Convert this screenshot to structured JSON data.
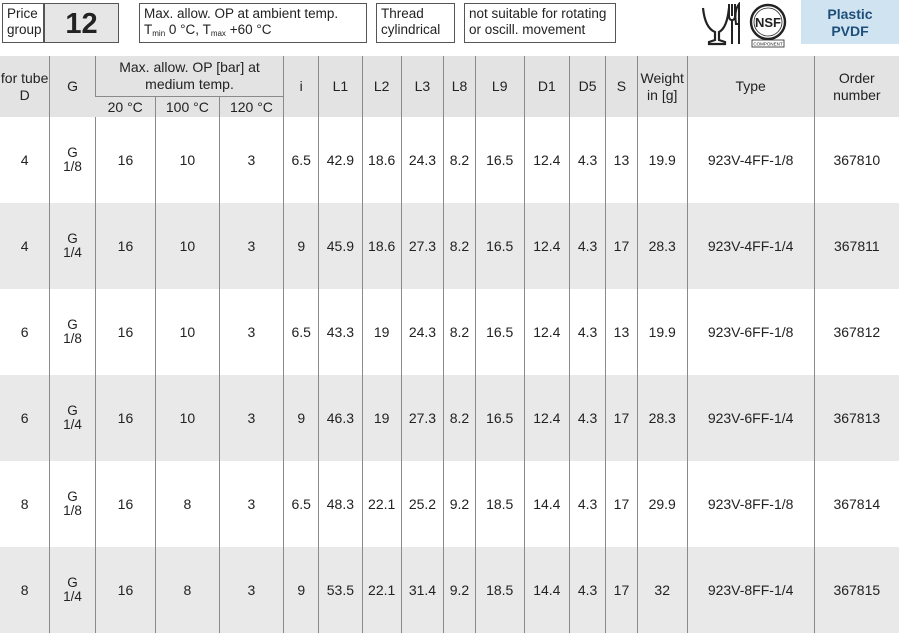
{
  "header": {
    "price_group_label_1": "Price",
    "price_group_label_2": "group",
    "price_group_number": "12",
    "temp_line1": "Max. allow. OP at ambient temp.",
    "temp_tmin_T": "T",
    "temp_tmin_sub": "min",
    "temp_tmin_val": " 0 °C, ",
    "temp_tmax_T": "T",
    "temp_tmax_sub": "max",
    "temp_tmax_val": " +60 °C",
    "thread_line1": "Thread",
    "thread_line2": "cylindrical",
    "rotating_line1": "not suitable for rotating",
    "rotating_line2": "or oscill. movement",
    "food_icon": "food-safe-icon",
    "nsf_icon": "nsf-certified-icon",
    "nsf_text": "NSF",
    "nsf_sub": "COMPONENT",
    "material_line1": "Plastic",
    "material_line2": "PVDF",
    "material_bg": "#cfe3f0",
    "material_color": "#1e4f7a"
  },
  "table": {
    "col_tube": "for tube D",
    "col_g": "G",
    "col_op": "Max. allow. OP [bar] at medium temp.",
    "col_20": "20 °C",
    "col_100": "100 °C",
    "col_120": "120 °C",
    "col_i": "i",
    "col_l1": "L1",
    "col_l2": "L2",
    "col_l3": "L3",
    "col_l8": "L8",
    "col_l9": "L9",
    "col_d1": "D1",
    "col_d5": "D5",
    "col_s": "S",
    "col_weight": "Weight in [g]",
    "col_type": "Type",
    "col_order": "Order number",
    "rows": [
      {
        "tube": "4",
        "g1": "G",
        "g2": "1/8",
        "op20": "16",
        "op100": "10",
        "op120": "3",
        "i": "6.5",
        "l1": "42.9",
        "l2": "18.6",
        "l3": "24.3",
        "l8": "8.2",
        "l9": "16.5",
        "d1": "12.4",
        "d5": "4.3",
        "s": "13",
        "weight": "19.9",
        "type": "923V-4FF-1/8",
        "order": "367810"
      },
      {
        "tube": "4",
        "g1": "G",
        "g2": "1/4",
        "op20": "16",
        "op100": "10",
        "op120": "3",
        "i": "9",
        "l1": "45.9",
        "l2": "18.6",
        "l3": "27.3",
        "l8": "8.2",
        "l9": "16.5",
        "d1": "12.4",
        "d5": "4.3",
        "s": "17",
        "weight": "28.3",
        "type": "923V-4FF-1/4",
        "order": "367811"
      },
      {
        "tube": "6",
        "g1": "G",
        "g2": "1/8",
        "op20": "16",
        "op100": "10",
        "op120": "3",
        "i": "6.5",
        "l1": "43.3",
        "l2": "19",
        "l3": "24.3",
        "l8": "8.2",
        "l9": "16.5",
        "d1": "12.4",
        "d5": "4.3",
        "s": "13",
        "weight": "19.9",
        "type": "923V-6FF-1/8",
        "order": "367812"
      },
      {
        "tube": "6",
        "g1": "G",
        "g2": "1/4",
        "op20": "16",
        "op100": "10",
        "op120": "3",
        "i": "9",
        "l1": "46.3",
        "l2": "19",
        "l3": "27.3",
        "l8": "8.2",
        "l9": "16.5",
        "d1": "12.4",
        "d5": "4.3",
        "s": "17",
        "weight": "28.3",
        "type": "923V-6FF-1/4",
        "order": "367813"
      },
      {
        "tube": "8",
        "g1": "G",
        "g2": "1/8",
        "op20": "16",
        "op100": "8",
        "op120": "3",
        "i": "6.5",
        "l1": "48.3",
        "l2": "22.1",
        "l3": "25.2",
        "l8": "9.2",
        "l9": "18.5",
        "d1": "14.4",
        "d5": "4.3",
        "s": "17",
        "weight": "29.9",
        "type": "923V-8FF-1/8",
        "order": "367814"
      },
      {
        "tube": "8",
        "g1": "G",
        "g2": "1/4",
        "op20": "16",
        "op100": "8",
        "op120": "3",
        "i": "9",
        "l1": "53.5",
        "l2": "22.1",
        "l3": "31.4",
        "l8": "9.2",
        "l9": "18.5",
        "d1": "14.4",
        "d5": "4.3",
        "s": "17",
        "weight": "32",
        "type": "923V-8FF-1/4",
        "order": "367815"
      }
    ]
  }
}
